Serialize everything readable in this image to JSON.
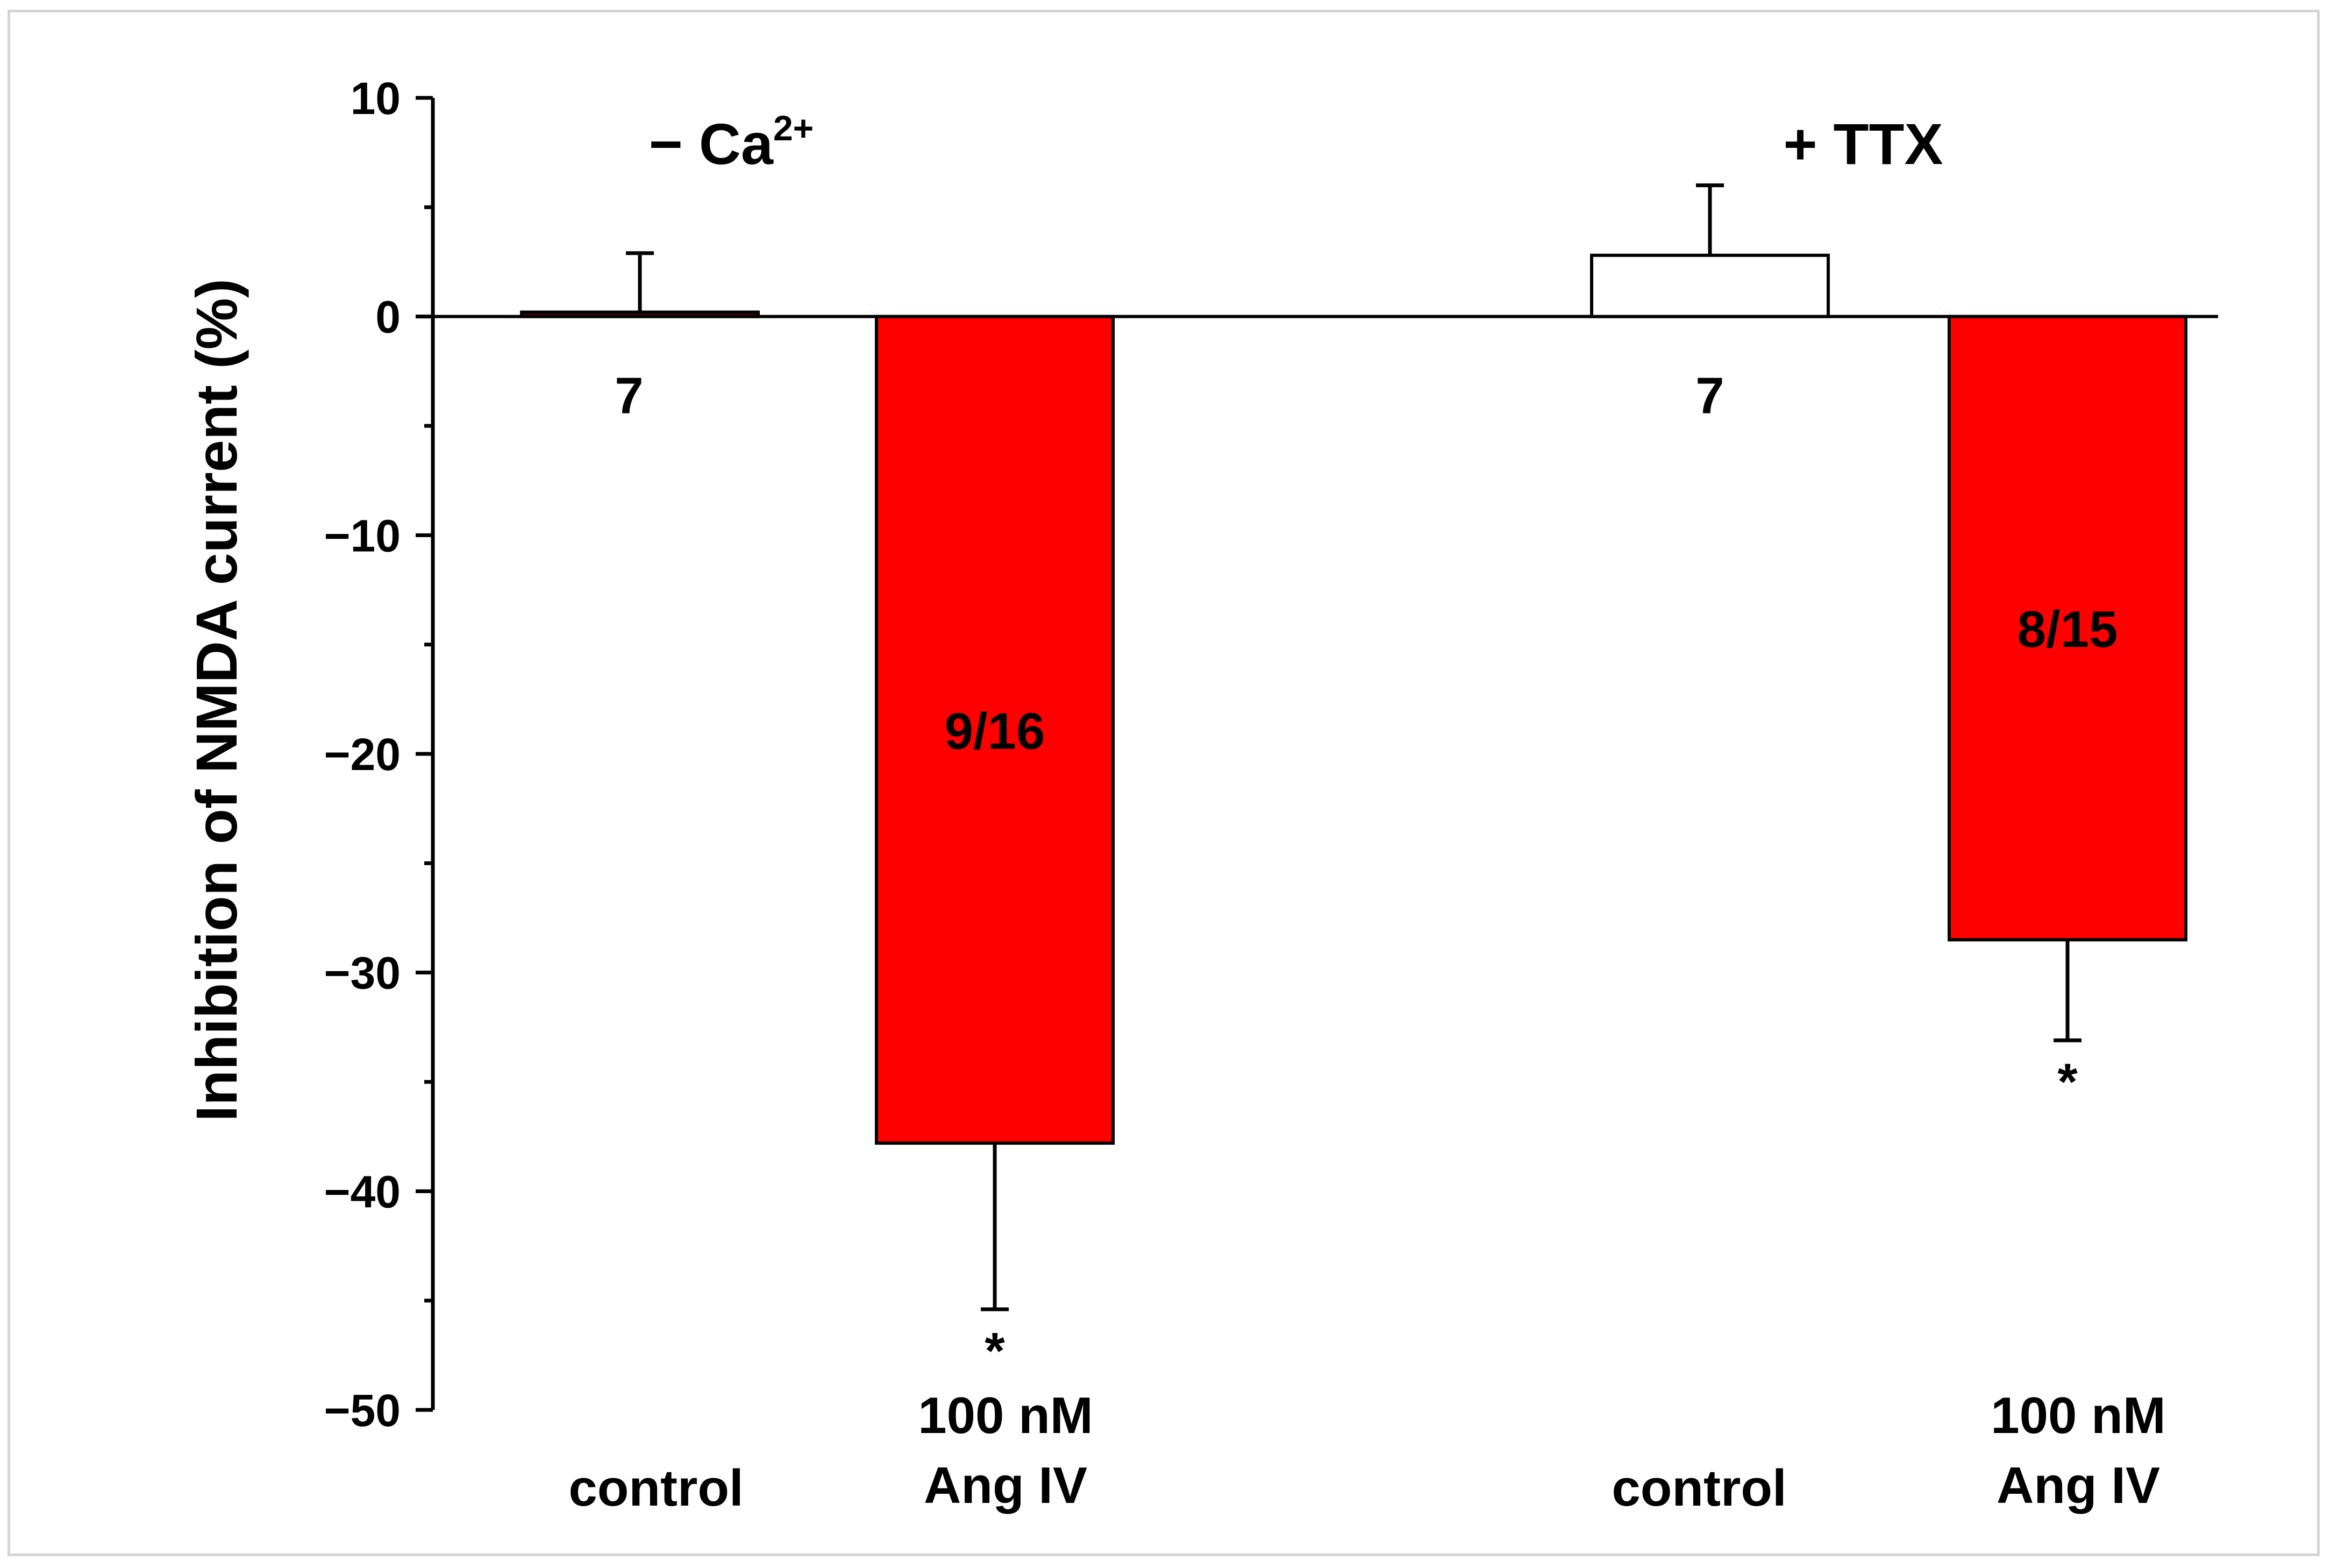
{
  "chart_data": {
    "type": "bar",
    "ylabel": "Inhibition of NMDA current (%)",
    "ylim": [
      -50,
      10
    ],
    "yticks": [
      10,
      0,
      -10,
      -20,
      -30,
      -40,
      -50
    ],
    "ytick_labels": [
      "10",
      "0",
      "−10",
      "−20",
      "−30",
      "−40",
      "−50"
    ],
    "grid": false,
    "groups": [
      {
        "label": "− Ca",
        "label_superscript": "2+",
        "bars": [
          {
            "category": [
              "control"
            ],
            "value": 0.2,
            "error": 2.7,
            "color": "#5a0000",
            "n_label": "7",
            "significant": false
          },
          {
            "category": [
              "100 nM",
              "Ang  IV"
            ],
            "value": -37.8,
            "error": 7.6,
            "color": "#ff0000",
            "n_label": "9/16",
            "significant": true
          }
        ]
      },
      {
        "label": "+ TTX",
        "label_superscript": "",
        "bars": [
          {
            "category": [
              "control"
            ],
            "value": 2.8,
            "error": 3.2,
            "color": "#ffffff",
            "n_label": "7",
            "significant": false
          },
          {
            "category": [
              "100 nM",
              "Ang  IV"
            ],
            "value": -28.5,
            "error": 4.6,
            "color": "#ff0000",
            "n_label": "8/15",
            "significant": true
          }
        ]
      }
    ],
    "significance_marker": "*"
  }
}
